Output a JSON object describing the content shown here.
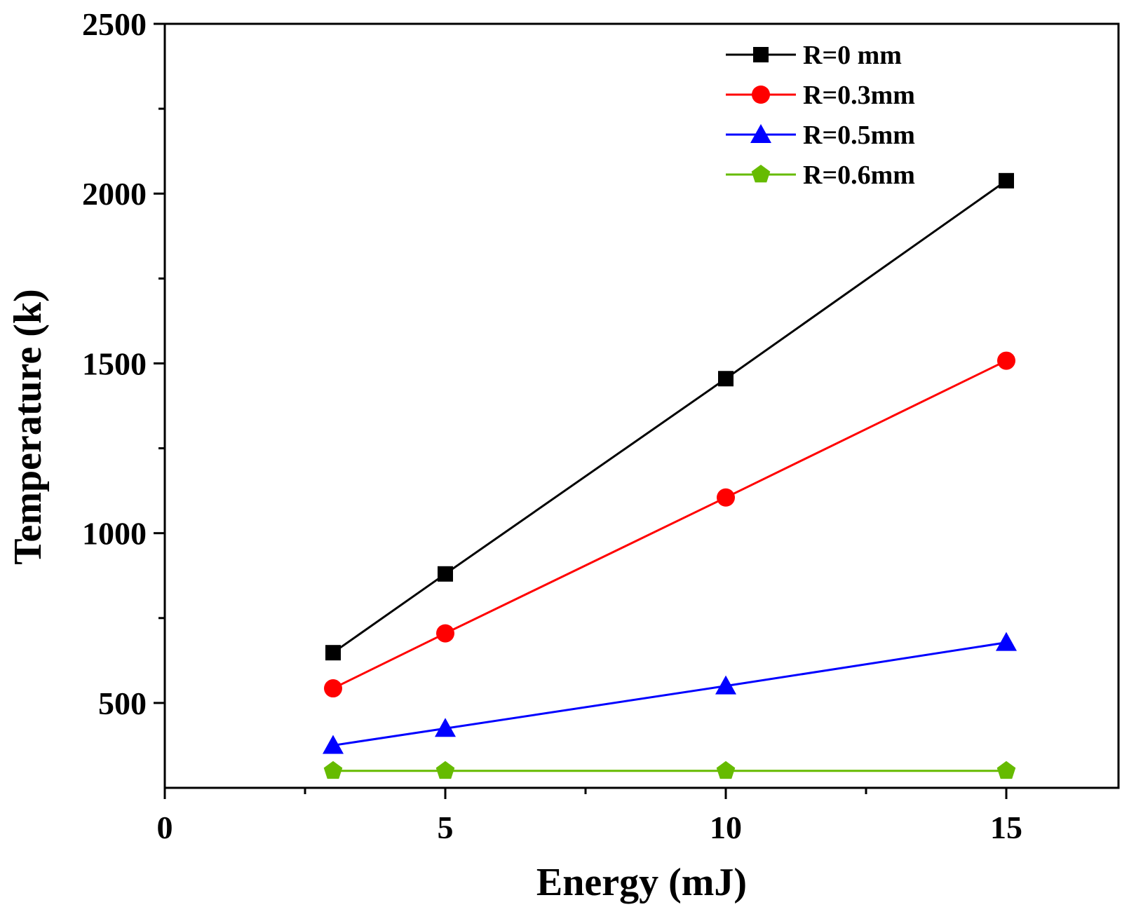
{
  "chart_data": {
    "type": "line",
    "title": "",
    "xlabel": "Energy (mJ)",
    "ylabel": "Temperature (k)",
    "xlim": [
      0,
      17
    ],
    "ylim": [
      250,
      2500
    ],
    "x_ticks": [
      0,
      5,
      10,
      15
    ],
    "x_tick_labels": [
      "0",
      "5",
      "10",
      "15"
    ],
    "x_minor_ticks": [
      2.5,
      7.5,
      12.5
    ],
    "y_ticks": [
      500,
      1000,
      1500,
      2000,
      2500
    ],
    "y_tick_labels": [
      "500",
      "1000",
      "1500",
      "2000",
      "2500"
    ],
    "y_minor_ticks": [
      750,
      1250,
      1750,
      2250
    ],
    "grid": false,
    "legend_position": "top-right",
    "x": [
      3,
      5,
      10,
      15
    ],
    "series": [
      {
        "name": "R=0 mm",
        "marker": "square",
        "color": "#000000",
        "values": [
          648,
          880,
          1455,
          2038
        ]
      },
      {
        "name": "R=0.3mm",
        "marker": "circle",
        "color": "#ff0000",
        "values": [
          543,
          705,
          1105,
          1508
        ]
      },
      {
        "name": "R=0.5mm",
        "marker": "triangle",
        "color": "#0000ff",
        "values": [
          375,
          425,
          550,
          678
        ]
      },
      {
        "name": "R=0.6mm",
        "marker": "pentagon",
        "color": "#66bb00",
        "values": [
          300,
          300,
          300,
          300
        ]
      }
    ]
  }
}
